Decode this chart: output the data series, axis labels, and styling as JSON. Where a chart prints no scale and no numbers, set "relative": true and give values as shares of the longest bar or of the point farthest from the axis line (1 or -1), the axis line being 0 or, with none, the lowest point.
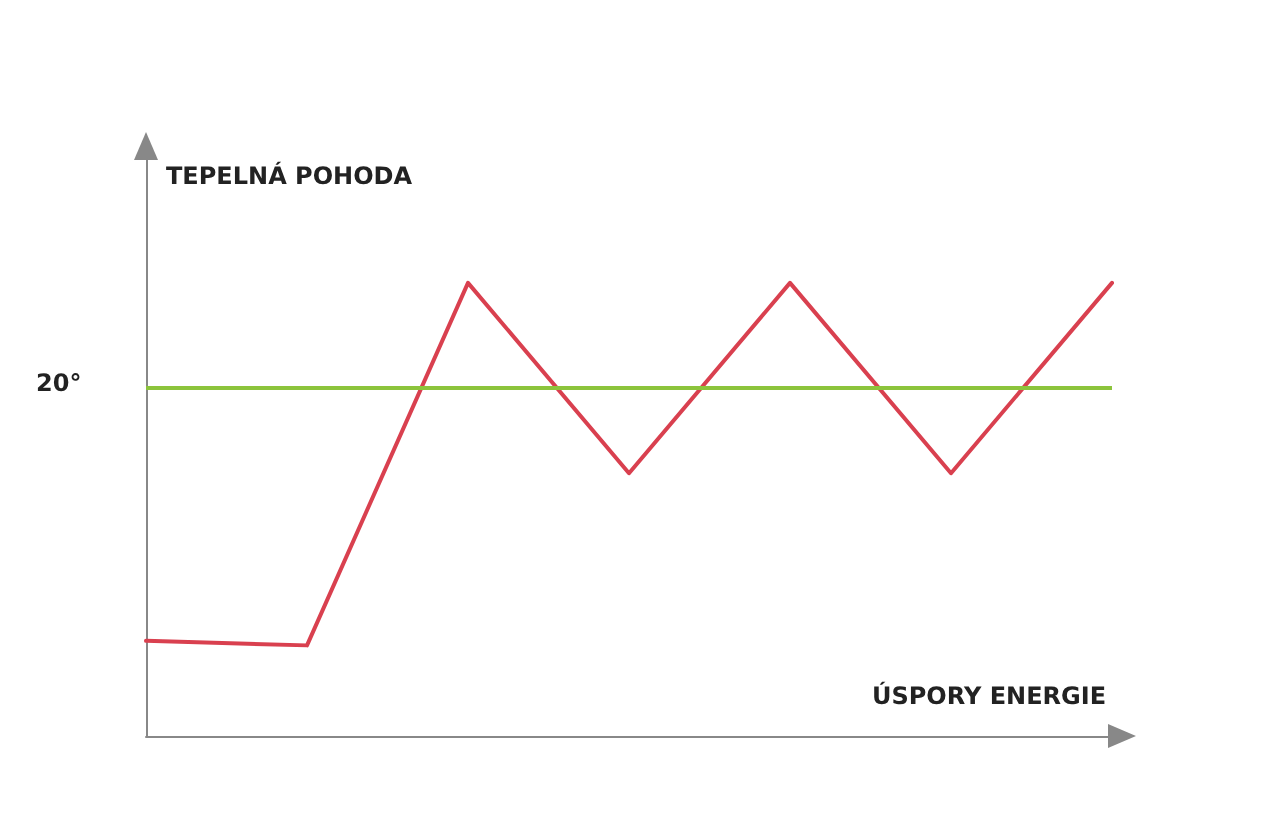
{
  "chart_data": {
    "type": "line",
    "relative": true,
    "xlabel": "ÚSPORY ENERGIE",
    "ylabel": "TEPELNÁ POHODA",
    "categories": [
      null,
      null,
      null,
      null,
      null,
      null,
      null
    ],
    "series": [
      {
        "color": "#d9404f",
        "values": [
          0.21,
          0.2,
          1,
          0.58,
          1,
          0.58,
          1
        ]
      }
    ],
    "ref_lines": [
      {
        "axis": "y",
        "value": 0.77,
        "color": "#8cc43c"
      }
    ],
    "annotations": [
      "20°"
    ],
    "grid": false,
    "marker": "none",
    "line_style": "solid"
  }
}
